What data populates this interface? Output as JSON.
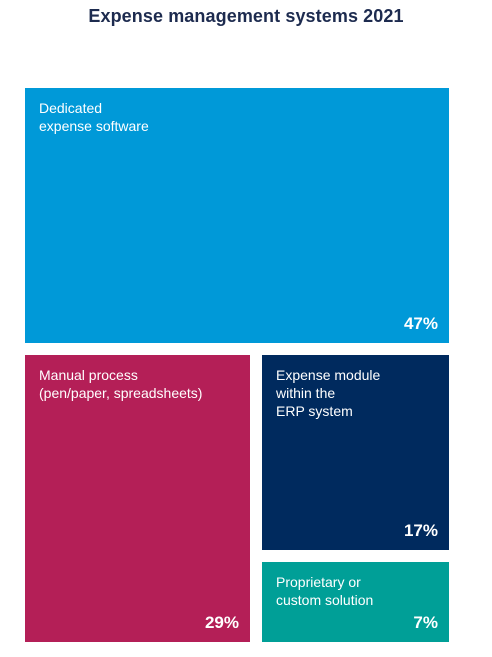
{
  "chart_data": {
    "type": "treemap",
    "title": "Expense management systems 2021",
    "unit": "%",
    "items": [
      {
        "label": "Dedicated\nexpense software",
        "value": 47,
        "display": "47%",
        "color": "#0099d8"
      },
      {
        "label": "Manual process\n(pen/paper, spreadsheets)",
        "value": 29,
        "display": "29%",
        "color": "#b41f57"
      },
      {
        "label": "Expense module\nwithin the\nERP system",
        "value": 17,
        "display": "17%",
        "color": "#002a5e"
      },
      {
        "label": "Proprietary or\ncustom solution",
        "value": 7,
        "display": "7%",
        "color": "#009f97"
      }
    ]
  }
}
